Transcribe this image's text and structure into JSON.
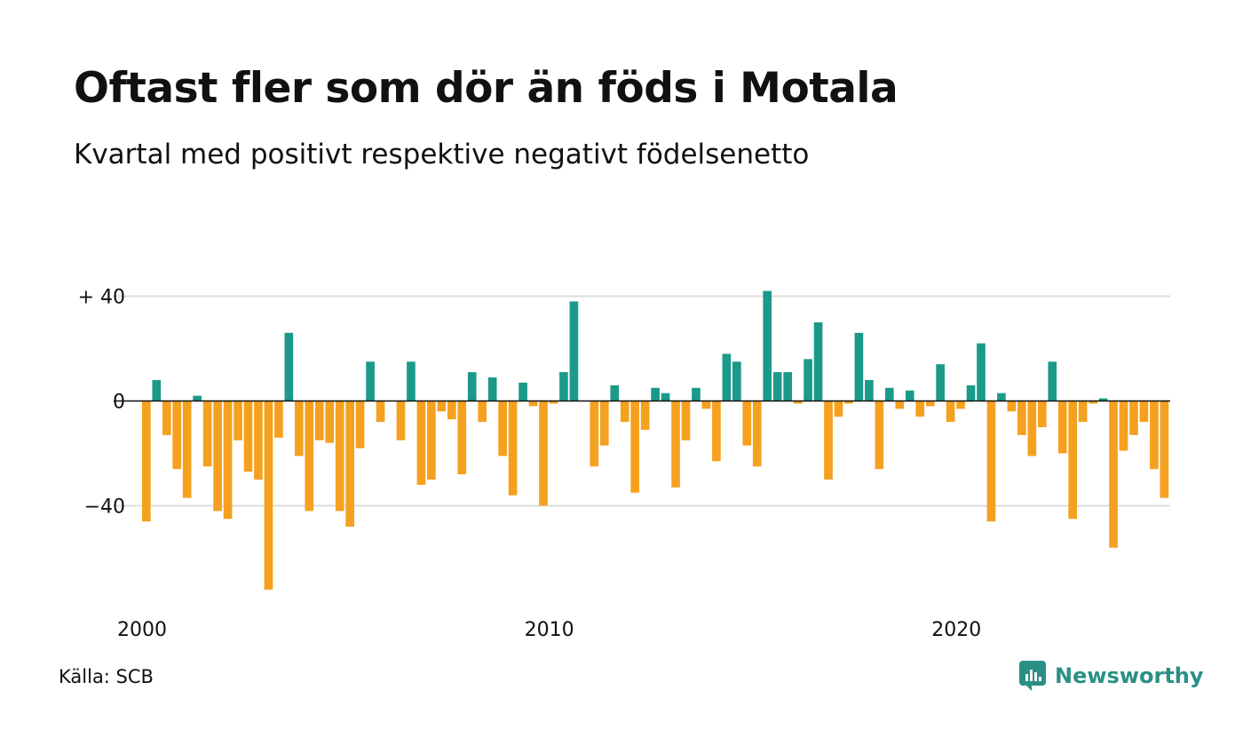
{
  "title": "Oftast fler som dör än föds i Motala",
  "subtitle": "Kvartal med positivt respektive negativt födelsenetto",
  "source": "Källa: SCB",
  "brand": {
    "name": "Newsworthy",
    "icon": "newsworthy-logo-icon",
    "color": "#2a9086"
  },
  "colors": {
    "positive": "#1b9a8a",
    "negative": "#f5a11f",
    "grid": "#dddddd",
    "zero": "#111111"
  },
  "chart_data": {
    "type": "bar",
    "title": "Oftast fler som dör än föds i Motala",
    "subtitle": "Kvartal med positivt respektive negativt födelsenetto",
    "x_start": "2000 Q1",
    "x_tick_labels": [
      "2000",
      "2010",
      "2020"
    ],
    "y_tick_labels": [
      "+ 40",
      "0",
      "−40"
    ],
    "y_ticks": [
      40,
      0,
      -40
    ],
    "ylim": [
      -75,
      45
    ],
    "grid": true,
    "values": [
      -46,
      8,
      -13,
      -26,
      -37,
      2,
      -25,
      -42,
      -45,
      -15,
      -27,
      -30,
      -72,
      -14,
      26,
      -21,
      -42,
      -15,
      -16,
      -42,
      -48,
      -18,
      15,
      -8,
      0,
      -15,
      15,
      -32,
      -30,
      -4,
      -7,
      -28,
      11,
      -8,
      9,
      -21,
      -36,
      7,
      -2,
      -40,
      -1,
      11,
      38,
      0,
      -25,
      -17,
      6,
      -8,
      -35,
      -11,
      5,
      3,
      -33,
      -15,
      5,
      -3,
      -23,
      18,
      15,
      -17,
      -25,
      42,
      11,
      11,
      -1,
      16,
      30,
      -30,
      -6,
      -1,
      26,
      8,
      -26,
      5,
      -3,
      4,
      -6,
      -2,
      14,
      -8,
      -3,
      6,
      22,
      -46,
      3,
      -4,
      -13,
      -21,
      -10,
      15,
      -20,
      -45,
      -8,
      -1,
      1,
      -56,
      -19,
      -13,
      -8,
      -26,
      -37
    ]
  }
}
